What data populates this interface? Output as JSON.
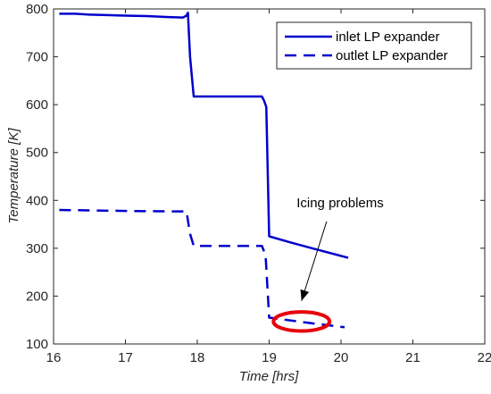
{
  "chart_data": {
    "type": "line",
    "xlabel": "Time [hrs]",
    "ylabel": "Temperature [K]",
    "xlim": [
      16,
      22
    ],
    "ylim": [
      100,
      800
    ],
    "xticks": [
      "16",
      "17",
      "18",
      "19",
      "20",
      "21",
      "22"
    ],
    "yticks": [
      "100",
      "200",
      "300",
      "400",
      "500",
      "600",
      "700",
      "800"
    ],
    "grid": false,
    "legend_position": "top-right",
    "series": [
      {
        "name": "inlet LP expander",
        "style": "solid",
        "color": "#0000cc",
        "x": [
          16.08,
          16.3,
          16.5,
          16.8,
          17.0,
          17.3,
          17.6,
          17.8,
          17.85,
          17.87,
          17.9,
          17.95,
          18.5,
          18.9,
          18.93,
          18.96,
          19.0,
          19.3,
          19.6,
          20.1
        ],
        "y": [
          790,
          790,
          788,
          787,
          786,
          785,
          783,
          782,
          786,
          792,
          700,
          617,
          617,
          617,
          608,
          595,
          325,
          312,
          300,
          280
        ]
      },
      {
        "name": "outlet LP expander",
        "style": "dashed",
        "color": "#0000cc",
        "x": [
          16.08,
          17.0,
          17.6,
          17.85,
          17.9,
          17.95,
          18.5,
          18.9,
          18.95,
          19.0,
          19.5,
          20.05
        ],
        "y": [
          380,
          378,
          377,
          377,
          330,
          305,
          305,
          305,
          285,
          155,
          145,
          135
        ]
      }
    ],
    "annotations": [
      {
        "text": "Icing problems",
        "x": 19.5,
        "y": 390
      }
    ],
    "highlight_ellipse": {
      "cx": 19.45,
      "cy": 147,
      "rx": 0.39,
      "ry": 20,
      "color": "#e8000b"
    },
    "arrow": {
      "from": [
        19.8,
        356
      ],
      "to": [
        19.45,
        190
      ]
    }
  }
}
